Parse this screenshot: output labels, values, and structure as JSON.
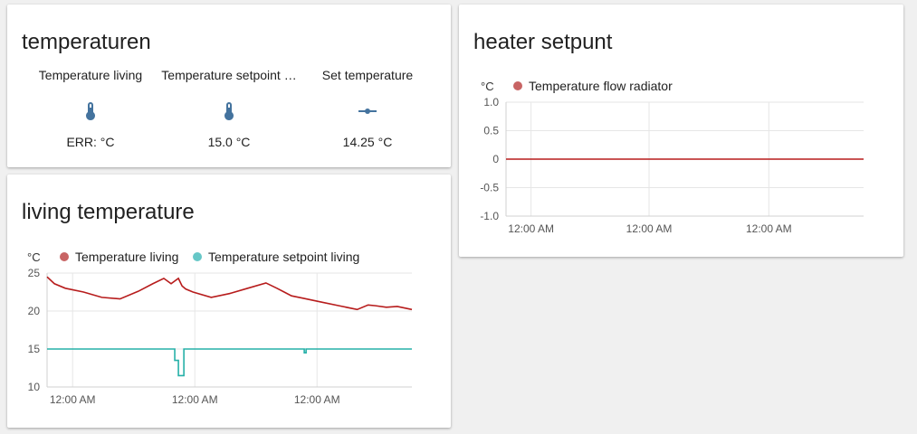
{
  "cards": {
    "temps": {
      "title": "temperaturen",
      "entities": [
        {
          "name": "Temperature living",
          "state": "ERR: °C",
          "icon": "thermometer-icon"
        },
        {
          "name": "Temperature setpoint …",
          "state": "15.0 °C",
          "icon": "thermometer-icon"
        },
        {
          "name": "Set temperature",
          "state": "14.25 °C",
          "icon": "slider-icon"
        }
      ]
    },
    "heater": {
      "title": "heater setpunt"
    },
    "living": {
      "title": "living temperature"
    }
  },
  "colors": {
    "red_series": "#b71c1c",
    "red_legend": "#c86464",
    "teal_series": "#26b0a8",
    "teal_legend": "#66c7c7",
    "icon": "#44739e"
  },
  "chart_data": [
    {
      "id": "heater",
      "type": "line",
      "unit": "°C",
      "ylim": [
        -1.0,
        1.0
      ],
      "yticks": [
        "1.0",
        "0.5",
        "0",
        "-0.5",
        "-1.0"
      ],
      "ytick_values": [
        1.0,
        0.5,
        0,
        -0.5,
        -1.0
      ],
      "xticks": [
        "12:00 AM",
        "12:00 AM",
        "12:00 AM"
      ],
      "series": [
        {
          "name": "Temperature flow radiator",
          "x": [
            0,
            1
          ],
          "y": [
            0,
            0
          ]
        }
      ]
    },
    {
      "id": "living",
      "type": "line",
      "unit": "°C",
      "ylim": [
        10,
        25
      ],
      "yticks": [
        "25",
        "20",
        "15",
        "10"
      ],
      "ytick_values": [
        25,
        20,
        15,
        10
      ],
      "xticks": [
        "12:00 AM",
        "12:00 AM",
        "12:00 AM"
      ],
      "series": [
        {
          "name": "Temperature living",
          "x": [
            0,
            0.02,
            0.05,
            0.1,
            0.15,
            0.2,
            0.25,
            0.29,
            0.32,
            0.34,
            0.36,
            0.37,
            0.38,
            0.4,
            0.45,
            0.5,
            0.55,
            0.6,
            0.63,
            0.65,
            0.67,
            0.7,
            0.75,
            0.8,
            0.85,
            0.88,
            0.9,
            0.93,
            0.96,
            1.0
          ],
          "y": [
            24.5,
            23.6,
            23.0,
            22.5,
            21.8,
            21.6,
            22.6,
            23.6,
            24.3,
            23.6,
            24.3,
            23.3,
            22.9,
            22.5,
            21.8,
            22.3,
            23.0,
            23.7,
            23.0,
            22.5,
            22.0,
            21.7,
            21.2,
            20.7,
            20.2,
            20.8,
            20.7,
            20.5,
            20.6,
            20.2
          ]
        },
        {
          "name": "Temperature setpoint living",
          "x": [
            0,
            0.345,
            0.35,
            0.36,
            0.37,
            0.375,
            0.38,
            0.7,
            0.705,
            0.71,
            1.0
          ],
          "y": [
            15,
            15,
            13.5,
            11.5,
            11.5,
            15,
            15,
            15,
            14.5,
            15,
            15
          ]
        }
      ]
    }
  ]
}
